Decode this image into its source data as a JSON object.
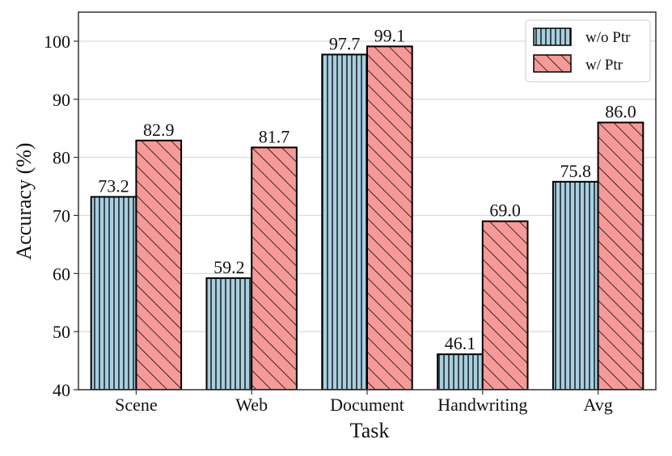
{
  "chart_data": {
    "type": "bar",
    "title": "",
    "xlabel": "Task",
    "ylabel": "Accuracy (%)",
    "categories": [
      "Scene",
      "Web",
      "Document",
      "Handwriting",
      "Avg"
    ],
    "series": [
      {
        "name": "w/o Ptr",
        "values": [
          73.2,
          59.2,
          97.7,
          46.1,
          75.8
        ],
        "color": "#a8cfe0",
        "pattern": "vertical-lines"
      },
      {
        "name": "w/ Ptr",
        "values": [
          82.9,
          81.7,
          99.1,
          69.0,
          86.0
        ],
        "color": "#f59a98",
        "pattern": "diagonal-lines"
      }
    ],
    "ylim": [
      40,
      105
    ],
    "yticks": [
      40,
      50,
      60,
      70,
      80,
      90,
      100
    ],
    "grid": true,
    "legend_position": "top-right",
    "data_labels": true
  }
}
